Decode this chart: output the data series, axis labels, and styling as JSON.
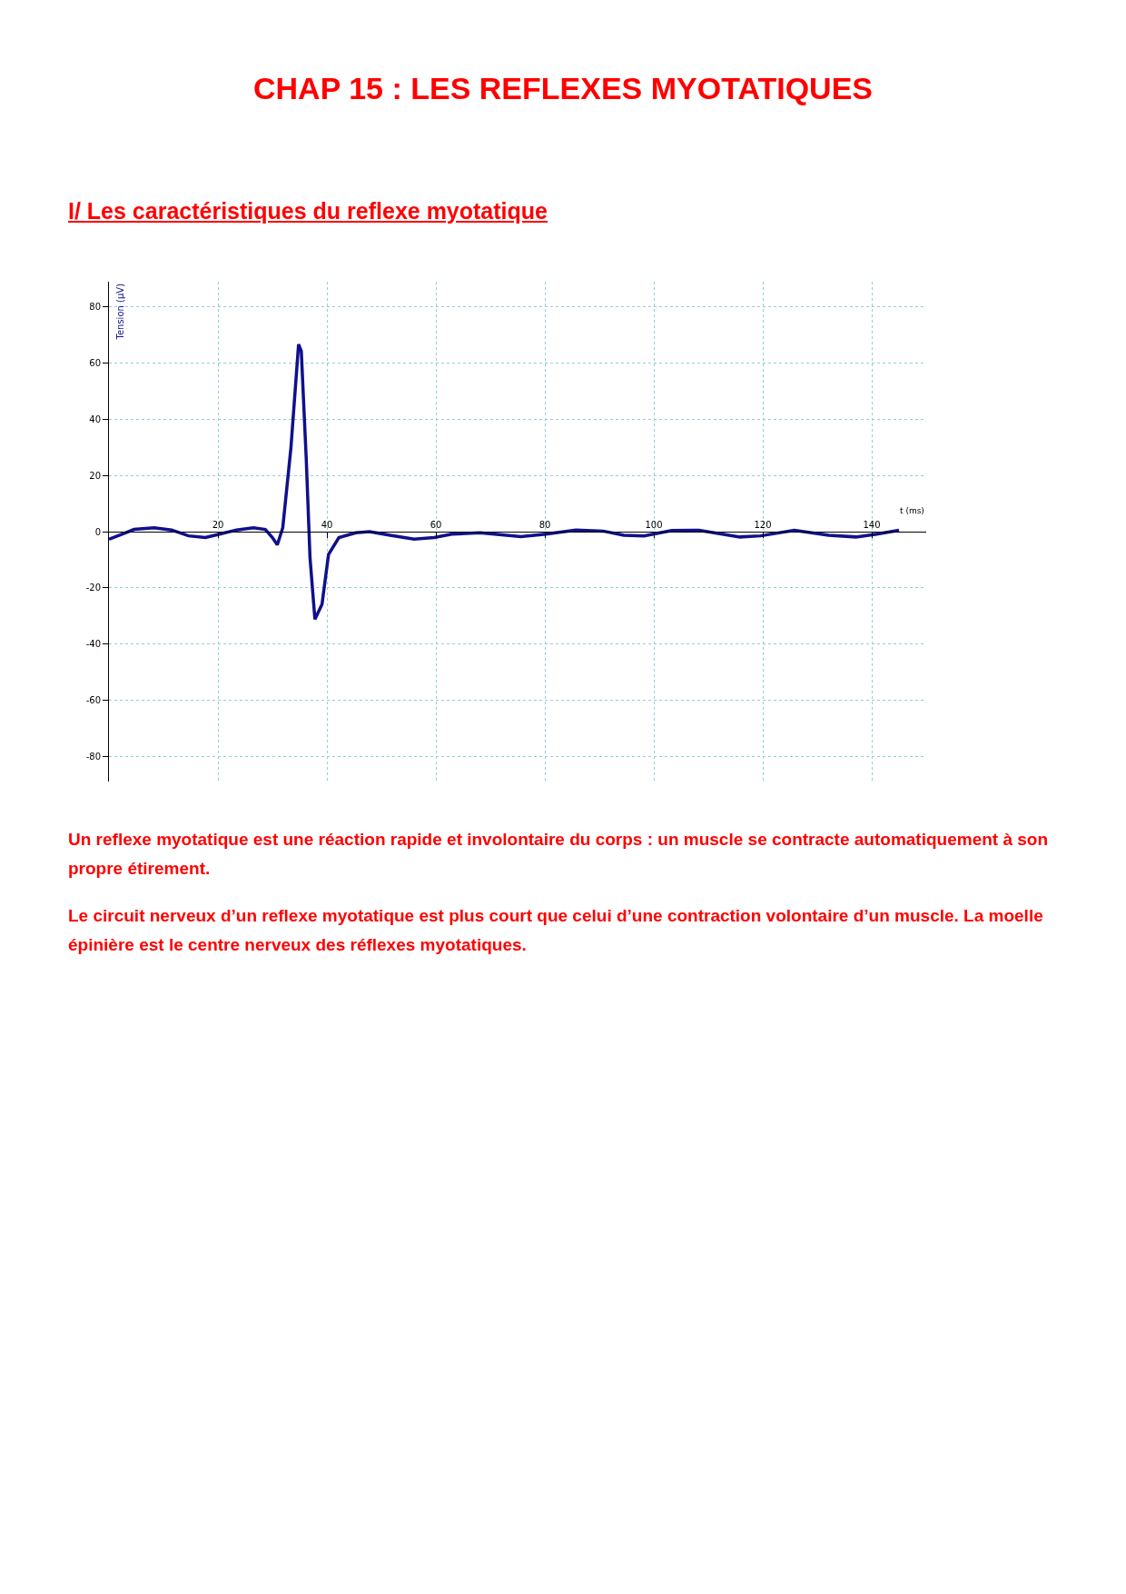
{
  "chart_data": {
    "type": "line",
    "title": "CHAP 15 : LES REFLEXES MYOTATIQUES",
    "subtitle": "I/ Les caractéristiques du reflexe myotatique",
    "xlabel": "t (ms)",
    "ylabel": "Tension (µV)",
    "annotations": [
      "Un reflexe myotatique est une réaction rapide et involontaire du corps : un muscle se contracte automatiquement à son propre étirement.",
      "Le circuit nerveux d’un reflexe myotatique est plus court que celui d’une contraction volontaire d’un muscle. La moelle épinière est le centre nerveux des réflexes myotatiques."
    ],
    "xlim": [
      0,
      150
    ],
    "ylim": [
      -89,
      89
    ],
    "xticks": [
      20,
      40,
      60,
      80,
      100,
      120,
      140
    ],
    "yticks": [
      -80,
      -60,
      -40,
      -20,
      0,
      20,
      40,
      60,
      80
    ],
    "grid": true,
    "marker": "none",
    "line_style": "solid",
    "series": [
      {
        "color": "#10108c",
        "x": [
          0,
          2.7,
          4.6,
          8.3,
          11.5,
          14.6,
          17.7,
          20.3,
          23.4,
          26.5,
          28.7,
          30.0,
          30.9,
          31.9,
          33.4,
          34.8,
          35.3,
          36.2,
          36.9,
          37.8,
          39.1,
          40.3,
          42.2,
          45.3,
          47.8,
          51.6,
          56.0,
          59.7,
          62.9,
          66.4,
          68.1,
          75.6,
          80.2,
          85.7,
          90.7,
          94.5,
          98.2,
          103.3,
          108.3,
          115.8,
          119.6,
          125.8,
          132.1,
          137.1,
          140.9,
          145.0
        ],
        "values": [
          -2.7,
          -0.7,
          0.8,
          1.4,
          0.6,
          -1.5,
          -2.1,
          -0.9,
          0.6,
          1.4,
          0.8,
          -2.1,
          -4.7,
          1.4,
          29.9,
          66.7,
          64.3,
          26.3,
          -9.3,
          -31.2,
          -25.9,
          -8.1,
          -2.1,
          -0.4,
          0,
          -1.3,
          -2.7,
          -2.1,
          -0.9,
          -0.6,
          -0.4,
          -1.8,
          -0.9,
          0.6,
          0.2,
          -1.3,
          -1.5,
          0.4,
          0.5,
          -1.9,
          -1.5,
          0.5,
          -1.3,
          -1.9,
          -0.9,
          0.5
        ]
      }
    ]
  }
}
